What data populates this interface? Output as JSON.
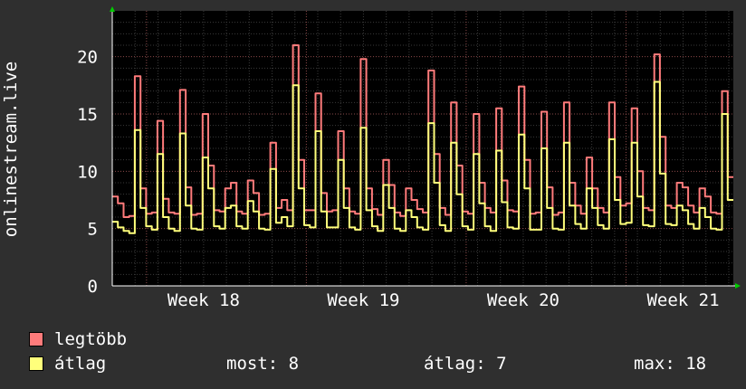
{
  "chart_data": {
    "type": "line",
    "ylabel": "onlinestream.live",
    "ylim": [
      0,
      24
    ],
    "yticks": [
      0,
      5,
      10,
      15,
      20
    ],
    "xticks": [
      "Week 18",
      "Week 19",
      "Week 20",
      "Week 21"
    ],
    "grid": true,
    "x_range": [
      0,
      27.2
    ],
    "x_units": "days from chart start",
    "colors": {
      "max": "#ff7b7b",
      "avg": "#ffff7b",
      "background": "#000000",
      "grid": "#5a5a5a",
      "page": "#2f2f2f"
    },
    "series": [
      {
        "name": "legtöbb",
        "key": "max",
        "values": [
          7.8,
          7.2,
          6.0,
          6.1,
          18.3,
          8.5,
          6.3,
          6.4,
          14.4,
          7.6,
          6.4,
          6.3,
          17.1,
          8.6,
          6.2,
          6.3,
          15.0,
          10.5,
          6.6,
          6.5,
          8.5,
          9.0,
          6.5,
          6.3,
          9.2,
          8.1,
          6.2,
          6.3,
          12.5,
          6.8,
          7.5,
          6.6,
          21.0,
          11.0,
          6.6,
          6.6,
          16.8,
          8.1,
          6.5,
          6.6,
          13.5,
          8.5,
          6.5,
          6.3,
          19.8,
          8.5,
          6.7,
          6.2,
          11.0,
          8.8,
          6.4,
          6.1,
          8.5,
          7.5,
          6.7,
          6.4,
          18.8,
          11.5,
          6.8,
          6.2,
          16.0,
          10.5,
          6.5,
          6.3,
          15.0,
          9.0,
          6.8,
          6.4,
          15.5,
          9.2,
          6.6,
          6.5,
          17.4,
          11.0,
          6.3,
          6.4,
          15.2,
          8.6,
          6.2,
          6.4,
          16.0,
          9.0,
          7.0,
          6.3,
          11.2,
          8.5,
          6.8,
          6.4,
          16.0,
          9.5,
          7.0,
          7.2,
          15.5,
          10.0,
          6.8,
          6.6,
          20.2,
          13.0,
          7.0,
          6.8,
          9.0,
          8.6,
          7.0,
          6.4,
          8.5,
          7.8,
          6.4,
          6.3,
          17.0,
          9.5
        ]
      },
      {
        "name": "átlag",
        "key": "avg",
        "values": [
          5.6,
          5.1,
          4.8,
          4.6,
          13.6,
          6.8,
          5.2,
          4.9,
          11.5,
          6.0,
          5.0,
          4.8,
          13.3,
          7.0,
          5.0,
          4.9,
          11.2,
          8.5,
          5.2,
          5.0,
          6.8,
          7.0,
          5.2,
          5.0,
          7.4,
          6.5,
          5.0,
          4.9,
          10.2,
          5.5,
          6.0,
          5.2,
          17.5,
          8.5,
          5.3,
          5.1,
          13.5,
          6.5,
          5.1,
          5.1,
          11.0,
          6.8,
          5.1,
          4.9,
          13.8,
          6.6,
          5.2,
          4.8,
          8.8,
          6.8,
          5.0,
          4.8,
          6.6,
          6.0,
          5.1,
          4.9,
          14.2,
          9.0,
          5.3,
          4.8,
          12.5,
          8.0,
          5.2,
          4.9,
          11.5,
          7.2,
          5.2,
          4.8,
          11.8,
          7.3,
          5.1,
          5.0,
          13.2,
          8.5,
          4.9,
          4.9,
          12.0,
          6.8,
          5.0,
          4.9,
          12.5,
          7.0,
          5.4,
          5.0,
          8.5,
          6.8,
          5.3,
          5.0,
          12.8,
          7.5,
          5.4,
          5.5,
          12.5,
          7.8,
          5.3,
          5.2,
          17.8,
          9.8,
          5.4,
          5.3,
          7.0,
          6.6,
          5.4,
          5.0,
          6.8,
          6.0,
          5.0,
          4.9,
          15.0,
          7.5
        ]
      }
    ]
  },
  "legend": {
    "max_label": "legtöbb",
    "avg_label": "átlag"
  },
  "stats": {
    "now_label": "most:",
    "now_value": "8",
    "avg_label": "átlag:",
    "avg_value": "7",
    "max_label": "max:",
    "max_value": "18"
  }
}
